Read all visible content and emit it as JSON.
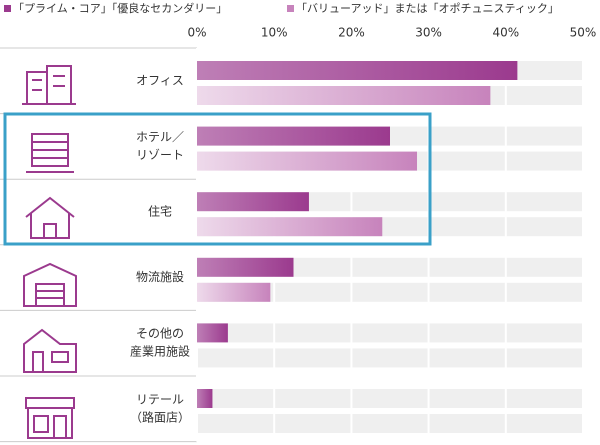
{
  "chart_data": {
    "type": "bar",
    "orientation": "horizontal",
    "categories": [
      [
        "オフィス"
      ],
      [
        "ホテル／",
        "リゾート"
      ],
      [
        "住宅"
      ],
      [
        "物流施設"
      ],
      [
        "その他の",
        "産業用施設"
      ],
      [
        "リテール",
        "（路面店）"
      ]
    ],
    "series": [
      {
        "name": "「プライム・コア」「優良なセカンダリー」",
        "color": "#9b3a8e",
        "values": [
          41.5,
          25,
          14.5,
          12.5,
          4,
          2
        ]
      },
      {
        "name": "「バリューアッド」または「オポチュニスティック」",
        "color": "#c783bc",
        "values": [
          38,
          28.5,
          24,
          9.5,
          0,
          0
        ]
      }
    ],
    "xlim": [
      0,
      50
    ],
    "xticks": [
      {
        "value": 0,
        "label": "0%"
      },
      {
        "value": 10,
        "label": "10%"
      },
      {
        "value": 20,
        "label": "20%"
      },
      {
        "value": 30,
        "label": "30%"
      },
      {
        "value": 40,
        "label": "40%"
      },
      {
        "value": 50,
        "label": "50%"
      }
    ],
    "grid": true
  }
}
